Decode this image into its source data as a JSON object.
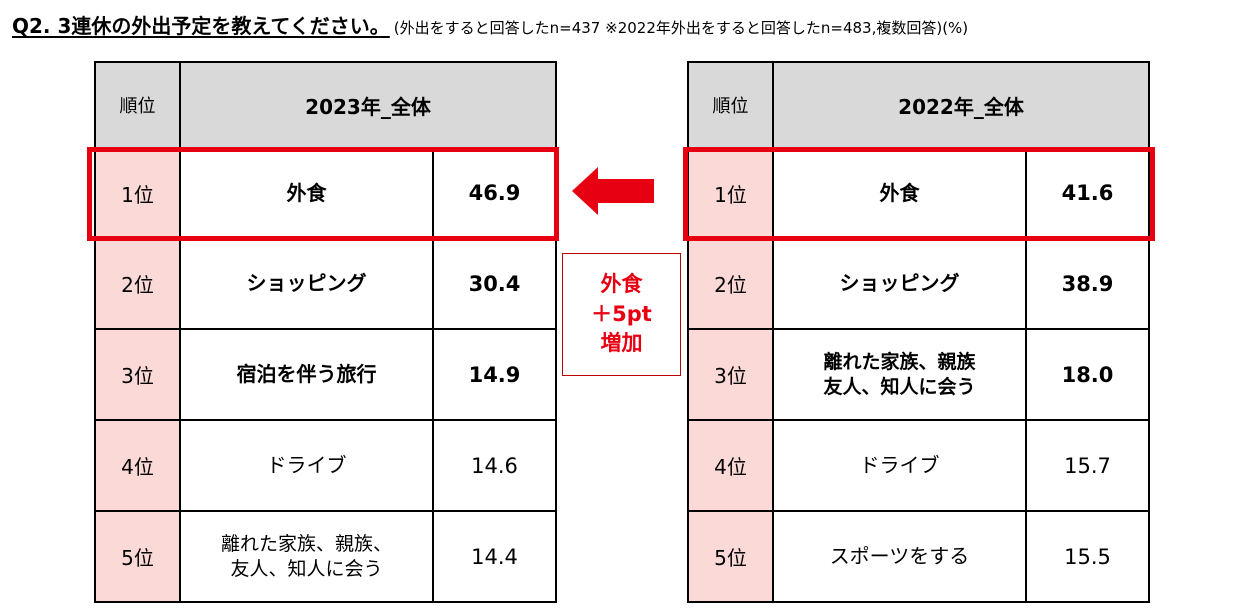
{
  "title": {
    "main": "Q2. 3連休の外出予定を教えてください。",
    "sub": "(外出をすると回答したn=437 ※2022年外出をすると回答したn=483,複数回答)(%)"
  },
  "colors": {
    "accent": "#e60012",
    "rank_bg": "#fbd9d6",
    "header_bg": "#d9d9d9"
  },
  "left_table": {
    "rank_header": "順位",
    "title": "2023年_全体",
    "rows": [
      {
        "rank": "1位",
        "item": "外食",
        "value": "46.9"
      },
      {
        "rank": "2位",
        "item": "ショッピング",
        "value": "30.4"
      },
      {
        "rank": "3位",
        "item": "宿泊を伴う旅行",
        "value": "14.9"
      },
      {
        "rank": "4位",
        "item": "ドライブ",
        "value": "14.6"
      },
      {
        "rank": "5位",
        "item_line1": "離れた家族、親族、",
        "item_line2": "友人、知人に会う",
        "value": "14.4"
      }
    ]
  },
  "right_table": {
    "rank_header": "順位",
    "title": "2022年_全体",
    "rows": [
      {
        "rank": "1位",
        "item": "外食",
        "value": "41.6"
      },
      {
        "rank": "2位",
        "item": "ショッピング",
        "value": "38.9"
      },
      {
        "rank": "3位",
        "item_line1": "離れた家族、親族",
        "item_line2": "友人、知人に会う",
        "value": "18.0"
      },
      {
        "rank": "4位",
        "item": "ドライブ",
        "value": "15.7"
      },
      {
        "rank": "5位",
        "item": "スポーツをする",
        "value": "15.5"
      }
    ]
  },
  "callout": {
    "line1": "外食",
    "line2": "＋5pt",
    "line3": "増加"
  }
}
